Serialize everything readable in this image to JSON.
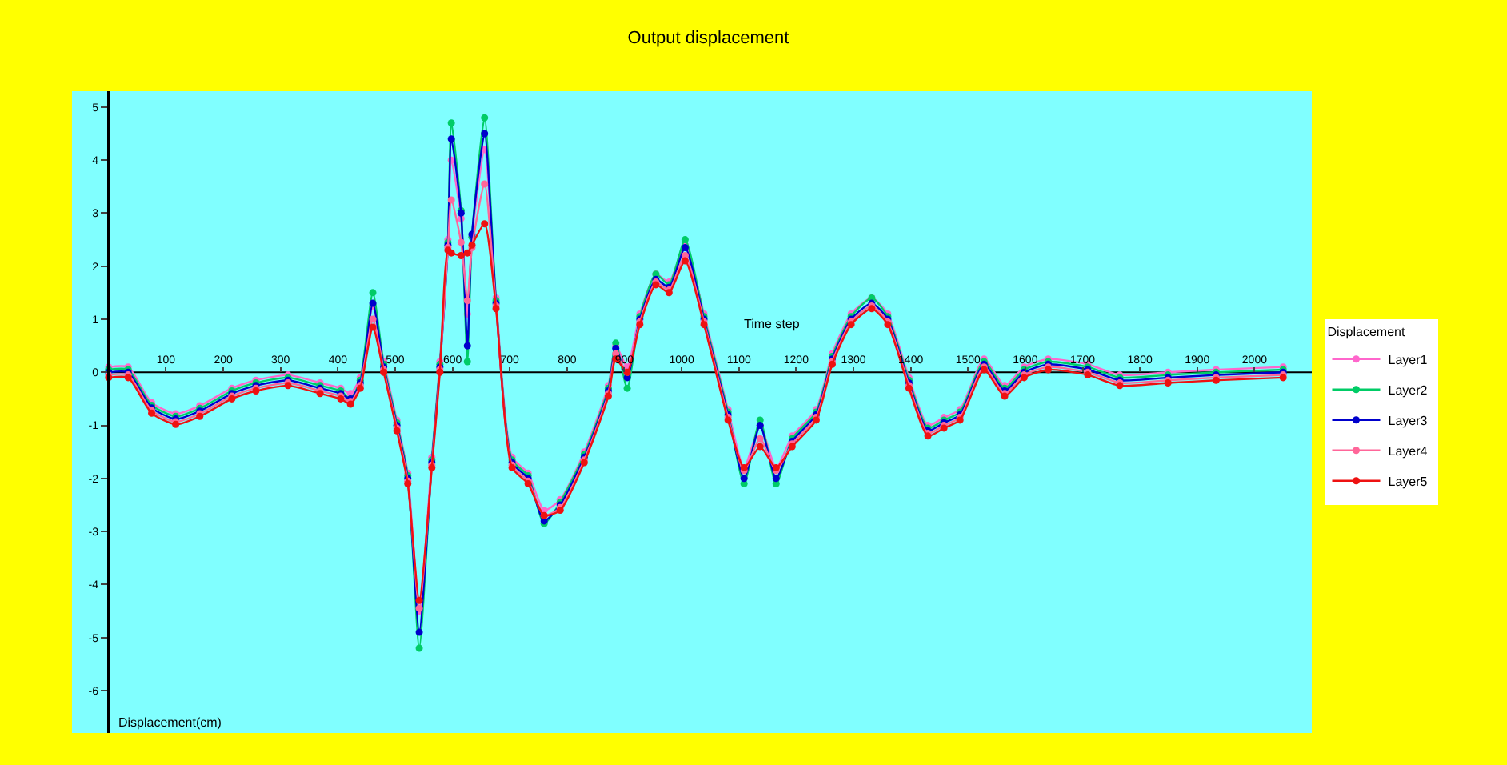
{
  "chart_data": {
    "type": "line",
    "title": "Output displacement",
    "xlabel": "Time step",
    "ylabel": "Displacement(cm)",
    "legend_title": "Displacement",
    "x": [
      0,
      34,
      75,
      117,
      159,
      215,
      257,
      313,
      369,
      405,
      422,
      439,
      461,
      480,
      503,
      522,
      542,
      564,
      578,
      592,
      598,
      615,
      626,
      634,
      656,
      676,
      704,
      732,
      760,
      788,
      830,
      872,
      885,
      905,
      927,
      955,
      978,
      1006,
      1039,
      1081,
      1109,
      1137,
      1165,
      1193,
      1235,
      1263,
      1296,
      1332,
      1360,
      1397,
      1430,
      1458,
      1486,
      1528,
      1564,
      1598,
      1640,
      1709,
      1765,
      1849,
      1933,
      2050
    ],
    "series": [
      {
        "name": "Layer1",
        "color": "#ff66cc",
        "values": [
          0.1,
          0.1,
          -0.57,
          -0.78,
          -0.63,
          -0.3,
          -0.15,
          -0.05,
          -0.2,
          -0.3,
          -0.4,
          -0.1,
          1.25,
          0.2,
          -0.9,
          -1.9,
          -4.5,
          -1.6,
          0.2,
          2.5,
          4.0,
          2.9,
          1.1,
          2.55,
          4.2,
          1.4,
          -1.6,
          -1.9,
          -2.6,
          -2.4,
          -1.5,
          -0.25,
          0.5,
          0.1,
          1.1,
          1.85,
          1.7,
          2.4,
          1.1,
          -0.7,
          -1.8,
          -1.0,
          -1.8,
          -1.2,
          -0.7,
          0.35,
          1.1,
          1.4,
          1.1,
          -0.1,
          -1.0,
          -0.85,
          -0.7,
          0.25,
          -0.25,
          0.1,
          0.25,
          0.15,
          -0.05,
          0.0,
          0.05,
          0.1
        ]
      },
      {
        "name": "Layer2",
        "color": "#00cc66",
        "values": [
          0.05,
          0.05,
          -0.62,
          -0.83,
          -0.68,
          -0.35,
          -0.2,
          -0.1,
          -0.25,
          -0.35,
          -0.5,
          -0.15,
          1.5,
          0.15,
          -0.95,
          -1.95,
          -5.2,
          -1.65,
          0.15,
          2.45,
          4.7,
          3.05,
          0.2,
          2.55,
          4.8,
          1.35,
          -1.65,
          -1.95,
          -2.85,
          -2.45,
          -1.55,
          -0.3,
          0.55,
          -0.3,
          1.05,
          1.85,
          1.65,
          2.5,
          1.05,
          -0.75,
          -2.1,
          -0.9,
          -2.1,
          -1.25,
          -0.75,
          0.3,
          1.05,
          1.4,
          1.05,
          -0.15,
          -1.05,
          -0.9,
          -0.75,
          0.2,
          -0.3,
          0.05,
          0.2,
          0.1,
          -0.1,
          -0.05,
          0.0,
          0.05
        ]
      },
      {
        "name": "Layer3",
        "color": "#0000cc",
        "values": [
          0,
          0,
          -0.67,
          -0.88,
          -0.73,
          -0.4,
          -0.25,
          -0.15,
          -0.3,
          -0.4,
          -0.5,
          -0.2,
          1.3,
          0.1,
          -1.0,
          -2.0,
          -4.9,
          -1.7,
          0.1,
          2.4,
          4.4,
          3.0,
          0.5,
          2.6,
          4.5,
          1.3,
          -1.7,
          -2.0,
          -2.8,
          -2.5,
          -1.6,
          -0.35,
          0.45,
          -0.1,
          1.0,
          1.75,
          1.6,
          2.35,
          1.0,
          -0.8,
          -2.0,
          -1.0,
          -2.0,
          -1.3,
          -0.8,
          0.25,
          1.0,
          1.3,
          1.0,
          -0.2,
          -1.1,
          -0.95,
          -0.8,
          0.15,
          -0.35,
          0.0,
          0.15,
          0.05,
          -0.15,
          -0.1,
          -0.05,
          0
        ]
      },
      {
        "name": "Layer4",
        "color": "#ff6699",
        "values": [
          -0.05,
          -0.05,
          -0.72,
          -0.93,
          -0.78,
          -0.45,
          -0.3,
          -0.2,
          -0.35,
          -0.45,
          -0.55,
          -0.25,
          1.0,
          0.05,
          -1.05,
          -2.05,
          -4.45,
          -1.75,
          0.05,
          2.35,
          3.25,
          2.45,
          1.35,
          2.35,
          3.55,
          1.25,
          -1.75,
          -2.05,
          -2.7,
          -2.55,
          -1.65,
          -0.4,
          0.35,
          0.0,
          0.95,
          1.7,
          1.55,
          2.2,
          0.95,
          -0.85,
          -1.85,
          -1.25,
          -1.85,
          -1.35,
          -0.85,
          0.2,
          0.95,
          1.25,
          0.95,
          -0.25,
          -1.15,
          -1.0,
          -0.85,
          0.1,
          -0.4,
          -0.05,
          0.1,
          0.0,
          -0.2,
          -0.15,
          -0.1,
          -0.05
        ]
      },
      {
        "name": "Layer5",
        "color": "#ee1111",
        "values": [
          -0.1,
          -0.1,
          -0.77,
          -0.98,
          -0.83,
          -0.5,
          -0.35,
          -0.25,
          -0.4,
          -0.5,
          -0.6,
          -0.3,
          0.85,
          0.0,
          -1.1,
          -2.1,
          -4.3,
          -1.8,
          0.0,
          2.3,
          2.25,
          2.2,
          2.25,
          2.4,
          2.8,
          1.2,
          -1.8,
          -2.1,
          -2.7,
          -2.6,
          -1.7,
          -0.45,
          0.25,
          0.0,
          0.9,
          1.65,
          1.5,
          2.1,
          0.9,
          -0.9,
          -1.8,
          -1.4,
          -1.8,
          -1.4,
          -0.9,
          0.15,
          0.9,
          1.2,
          0.9,
          -0.3,
          -1.2,
          -1.05,
          -0.9,
          0.05,
          -0.45,
          -0.1,
          0.05,
          -0.05,
          -0.25,
          -0.2,
          -0.15,
          -0.1
        ]
      }
    ],
    "xlim": [
      -64,
      2100
    ],
    "ylim": [
      -6.8,
      5.3
    ],
    "xticks": [
      100,
      200,
      300,
      400,
      500,
      600,
      700,
      800,
      900,
      1000,
      1100,
      1200,
      1300,
      1400,
      1500,
      1600,
      1700,
      1800,
      1900,
      2000
    ],
    "yticks": [
      -6,
      -5,
      -4,
      -3,
      -2,
      -1,
      0,
      1,
      2,
      3,
      4,
      5
    ],
    "grid": false,
    "legend": "right",
    "marker": "circle",
    "line_style": "solid"
  }
}
